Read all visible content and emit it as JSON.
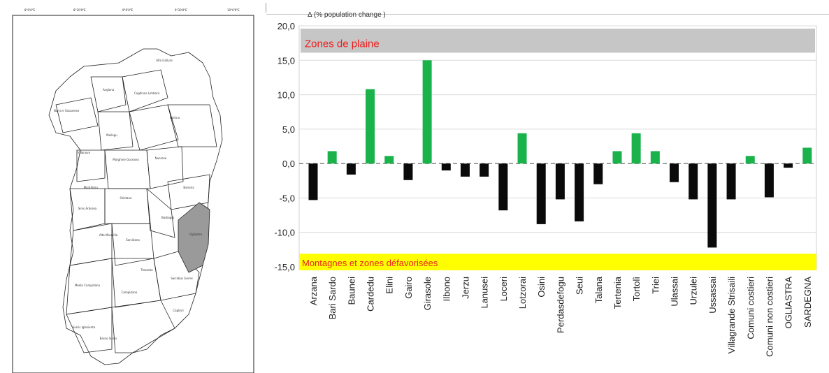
{
  "chart_data": {
    "type": "bar",
    "title": "Δ (% population change )",
    "categories": [
      "Arzana",
      "Bari Sardo",
      "Baunei",
      "Cardedu",
      "Elini",
      "Gairo",
      "Girasole",
      "Ilbono",
      "Jerzu",
      "Lanusei",
      "Loceri",
      "Lotzorai",
      "Osini",
      "Perdasdefogu",
      "Seui",
      "Talana",
      "Tertenia",
      "Tortolì",
      "Triei",
      "Ulassai",
      "Urzulei",
      "Ussassai",
      "Villagrande Strisaili",
      "Comuni costieri",
      "Comuni non costieri",
      "OGLIASTRA",
      "SARDEGNA"
    ],
    "values": [
      -5.3,
      1.8,
      -1.6,
      10.8,
      1.1,
      -2.4,
      15.0,
      -1.0,
      -1.9,
      -1.9,
      -6.8,
      4.4,
      -8.8,
      -5.2,
      -8.4,
      -3.0,
      1.8,
      4.4,
      1.8,
      -2.7,
      -5.2,
      -12.2,
      -5.2,
      1.1,
      -4.9,
      -0.6,
      2.3
    ],
    "bar_colors": [
      "black",
      "green",
      "black",
      "green",
      "green",
      "black",
      "green",
      "black",
      "black",
      "black",
      "black",
      "green",
      "black",
      "black",
      "black",
      "black",
      "green",
      "green",
      "green",
      "black",
      "black",
      "black",
      "black",
      "green",
      "black",
      "black",
      "green"
    ],
    "ylim": [
      -15,
      20
    ],
    "yticks": [
      "20,0",
      "15,0",
      "10,0",
      "5,0",
      "0,0",
      "-5,0",
      "-10,0",
      "-15,0"
    ],
    "ytick_values": [
      20,
      15,
      10,
      5,
      0,
      -5,
      -10,
      -15
    ],
    "xlabel": "",
    "ylabel": "",
    "grid": true,
    "bands": {
      "top_label": "Zones de plaine",
      "bottom_label": "Montagnes et zones défavorisées"
    }
  },
  "colors": {
    "green": "#19b24b",
    "black": "#0a0a0a",
    "top_band": "#c6c6c6",
    "top_band_text": "#ee1c1c",
    "bottom_band": "#ffff00",
    "bottom_band_text": "#e8221e"
  },
  "map": {
    "description_icon": "sardinia-provinces-map",
    "highlighted_region_color": "#9a9a9a"
  }
}
